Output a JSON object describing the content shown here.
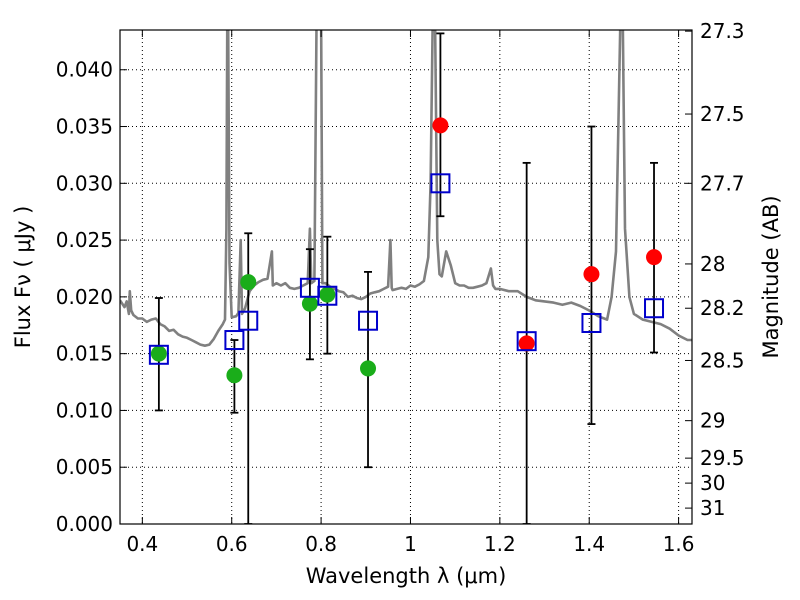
{
  "chart_data": {
    "type": "scatter",
    "xlabel": "Wavelength  λ (μm)",
    "ylabel": "Flux  Fν  ( μJy )",
    "ylabel_right": "Magnitude (AB)",
    "xlim": [
      0.35,
      1.63
    ],
    "ylim": [
      0.0,
      0.0435
    ],
    "grid": true,
    "x_ticks": [
      {
        "value": 0.4,
        "label": "0.4"
      },
      {
        "value": 0.6,
        "label": "0.6"
      },
      {
        "value": 0.8,
        "label": "0.8"
      },
      {
        "value": 1.0,
        "label": "1"
      },
      {
        "value": 1.2,
        "label": "1.2"
      },
      {
        "value": 1.4,
        "label": "1.4"
      },
      {
        "value": 1.6,
        "label": "1.6"
      }
    ],
    "y_ticks": [
      {
        "value": 0.0,
        "label": "0.000"
      },
      {
        "value": 0.005,
        "label": "0.005"
      },
      {
        "value": 0.01,
        "label": "0.010"
      },
      {
        "value": 0.015,
        "label": "0.015"
      },
      {
        "value": 0.02,
        "label": "0.020"
      },
      {
        "value": 0.025,
        "label": "0.025"
      },
      {
        "value": 0.03,
        "label": "0.030"
      },
      {
        "value": 0.035,
        "label": "0.035"
      },
      {
        "value": 0.04,
        "label": "0.040"
      }
    ],
    "right_ticks": [
      {
        "flux": 0.0434,
        "label": "27.3"
      },
      {
        "flux": 0.0361,
        "label": "27.5"
      },
      {
        "flux": 0.03,
        "label": "27.7"
      },
      {
        "flux": 0.0229,
        "label": "28"
      },
      {
        "flux": 0.019,
        "label": "28.2"
      },
      {
        "flux": 0.0144,
        "label": "28.5"
      },
      {
        "flux": 0.0091,
        "label": "29"
      },
      {
        "flux": 0.0058,
        "label": "29.5"
      },
      {
        "flux": 0.0036,
        "label": "30"
      },
      {
        "flux": 0.0014,
        "label": "31"
      }
    ],
    "series": [
      {
        "color": "#808080",
        "kind": "spectrum",
        "points": [
          [
            0.35,
            0.0197
          ],
          [
            0.36,
            0.0191
          ],
          [
            0.365,
            0.0196
          ],
          [
            0.37,
            0.0185
          ],
          [
            0.372,
            0.0205
          ],
          [
            0.375,
            0.0188
          ],
          [
            0.38,
            0.0184
          ],
          [
            0.39,
            0.0181
          ],
          [
            0.4,
            0.0181
          ],
          [
            0.41,
            0.0178
          ],
          [
            0.42,
            0.018
          ],
          [
            0.43,
            0.0181
          ],
          [
            0.44,
            0.0176
          ],
          [
            0.45,
            0.0174
          ],
          [
            0.46,
            0.017
          ],
          [
            0.47,
            0.0171
          ],
          [
            0.48,
            0.0167
          ],
          [
            0.49,
            0.0165
          ],
          [
            0.5,
            0.0164
          ],
          [
            0.51,
            0.0162
          ],
          [
            0.52,
            0.016
          ],
          [
            0.53,
            0.0158
          ],
          [
            0.54,
            0.0157
          ],
          [
            0.55,
            0.0158
          ],
          [
            0.56,
            0.0163
          ],
          [
            0.57,
            0.017
          ],
          [
            0.58,
            0.0176
          ],
          [
            0.585,
            0.018
          ],
          [
            0.588,
            0.026
          ],
          [
            0.59,
            0.045
          ],
          [
            0.592,
            0.045
          ],
          [
            0.595,
            0.023
          ],
          [
            0.6,
            0.0182
          ],
          [
            0.61,
            0.0183
          ],
          [
            0.615,
            0.0186
          ],
          [
            0.62,
            0.025
          ],
          [
            0.623,
            0.0185
          ],
          [
            0.63,
            0.019
          ],
          [
            0.64,
            0.0205
          ],
          [
            0.65,
            0.021
          ],
          [
            0.66,
            0.0213
          ],
          [
            0.67,
            0.0215
          ],
          [
            0.68,
            0.0216
          ],
          [
            0.69,
            0.024
          ],
          [
            0.692,
            0.021
          ],
          [
            0.7,
            0.0212
          ],
          [
            0.71,
            0.021
          ],
          [
            0.72,
            0.0212
          ],
          [
            0.73,
            0.0208
          ],
          [
            0.74,
            0.0207
          ],
          [
            0.75,
            0.0208
          ],
          [
            0.76,
            0.021
          ],
          [
            0.77,
            0.0212
          ],
          [
            0.775,
            0.026
          ],
          [
            0.778,
            0.0212
          ],
          [
            0.785,
            0.0214
          ],
          [
            0.79,
            0.045
          ],
          [
            0.795,
            0.045
          ],
          [
            0.8,
            0.045
          ],
          [
            0.803,
            0.0212
          ],
          [
            0.81,
            0.0212
          ],
          [
            0.82,
            0.0209
          ],
          [
            0.83,
            0.0207
          ],
          [
            0.84,
            0.0205
          ],
          [
            0.85,
            0.0204
          ],
          [
            0.86,
            0.02
          ],
          [
            0.87,
            0.0201
          ],
          [
            0.88,
            0.0199
          ],
          [
            0.89,
            0.0198
          ],
          [
            0.9,
            0.02
          ],
          [
            0.91,
            0.0203
          ],
          [
            0.92,
            0.0204
          ],
          [
            0.93,
            0.0205
          ],
          [
            0.94,
            0.0207
          ],
          [
            0.95,
            0.0209
          ],
          [
            0.955,
            0.025
          ],
          [
            0.958,
            0.0208
          ],
          [
            0.96,
            0.0206
          ],
          [
            0.97,
            0.0207
          ],
          [
            0.98,
            0.0208
          ],
          [
            0.99,
            0.0207
          ],
          [
            1.0,
            0.021
          ],
          [
            1.01,
            0.0209
          ],
          [
            1.02,
            0.0211
          ],
          [
            1.03,
            0.0214
          ],
          [
            1.04,
            0.0235
          ],
          [
            1.045,
            0.03
          ],
          [
            1.05,
            0.045
          ],
          [
            1.055,
            0.045
          ],
          [
            1.06,
            0.025
          ],
          [
            1.065,
            0.022
          ],
          [
            1.07,
            0.0218
          ],
          [
            1.08,
            0.024
          ],
          [
            1.09,
            0.0228
          ],
          [
            1.1,
            0.0212
          ],
          [
            1.11,
            0.021
          ],
          [
            1.12,
            0.021
          ],
          [
            1.13,
            0.0208
          ],
          [
            1.14,
            0.0208
          ],
          [
            1.15,
            0.0209
          ],
          [
            1.16,
            0.021
          ],
          [
            1.17,
            0.0212
          ],
          [
            1.18,
            0.0225
          ],
          [
            1.185,
            0.021
          ],
          [
            1.19,
            0.0207
          ],
          [
            1.2,
            0.0207
          ],
          [
            1.22,
            0.0205
          ],
          [
            1.24,
            0.0205
          ],
          [
            1.26,
            0.02
          ],
          [
            1.28,
            0.0197
          ],
          [
            1.3,
            0.0196
          ],
          [
            1.32,
            0.0195
          ],
          [
            1.34,
            0.0193
          ],
          [
            1.36,
            0.0195
          ],
          [
            1.38,
            0.0192
          ],
          [
            1.4,
            0.0188
          ],
          [
            1.42,
            0.0183
          ],
          [
            1.44,
            0.018
          ],
          [
            1.45,
            0.02
          ],
          [
            1.46,
            0.024
          ],
          [
            1.47,
            0.045
          ],
          [
            1.475,
            0.045
          ],
          [
            1.48,
            0.026
          ],
          [
            1.49,
            0.02
          ],
          [
            1.5,
            0.0185
          ],
          [
            1.52,
            0.018
          ],
          [
            1.54,
            0.0178
          ],
          [
            1.56,
            0.0176
          ],
          [
            1.58,
            0.0172
          ],
          [
            1.6,
            0.0166
          ],
          [
            1.62,
            0.0162
          ],
          [
            1.63,
            0.0162
          ]
        ]
      },
      {
        "color": "#1aad1a",
        "kind": "circle",
        "points": [
          {
            "x": 0.437,
            "y": 0.015
          },
          {
            "x": 0.606,
            "y": 0.0131
          },
          {
            "x": 0.637,
            "y": 0.0213
          },
          {
            "x": 0.775,
            "y": 0.0194
          },
          {
            "x": 0.814,
            "y": 0.0202
          },
          {
            "x": 0.905,
            "y": 0.0137
          }
        ]
      },
      {
        "color": "#ff0000",
        "kind": "circle",
        "points": [
          {
            "x": 1.067,
            "y": 0.0351
          },
          {
            "x": 1.26,
            "y": 0.0159
          },
          {
            "x": 1.405,
            "y": 0.022
          },
          {
            "x": 1.545,
            "y": 0.0235
          }
        ]
      },
      {
        "color": "#0000cc",
        "kind": "square",
        "points": [
          {
            "x": 0.437,
            "y": 0.0149
          },
          {
            "x": 0.606,
            "y": 0.0162
          },
          {
            "x": 0.637,
            "y": 0.0179
          },
          {
            "x": 0.775,
            "y": 0.0208
          },
          {
            "x": 0.814,
            "y": 0.0201
          },
          {
            "x": 0.905,
            "y": 0.0179
          },
          {
            "x": 1.067,
            "y": 0.03
          },
          {
            "x": 1.26,
            "y": 0.0161
          },
          {
            "x": 1.405,
            "y": 0.0177
          },
          {
            "x": 1.545,
            "y": 0.019
          }
        ]
      }
    ],
    "error_bars": [
      {
        "x": 0.437,
        "low": 0.01,
        "high": 0.0199
      },
      {
        "x": 0.606,
        "low": 0.0098,
        "high": 0.0162
      },
      {
        "x": 0.637,
        "low": 0.0,
        "high": 0.0256
      },
      {
        "x": 0.775,
        "low": 0.0145,
        "high": 0.0242
      },
      {
        "x": 0.814,
        "low": 0.015,
        "high": 0.0253
      },
      {
        "x": 0.905,
        "low": 0.005,
        "high": 0.0222
      },
      {
        "x": 1.067,
        "low": 0.0271,
        "high": 0.0432
      },
      {
        "x": 1.26,
        "low": 0.0,
        "high": 0.0318
      },
      {
        "x": 1.405,
        "low": 0.0088,
        "high": 0.035
      },
      {
        "x": 1.545,
        "low": 0.0151,
        "high": 0.0318
      }
    ]
  }
}
